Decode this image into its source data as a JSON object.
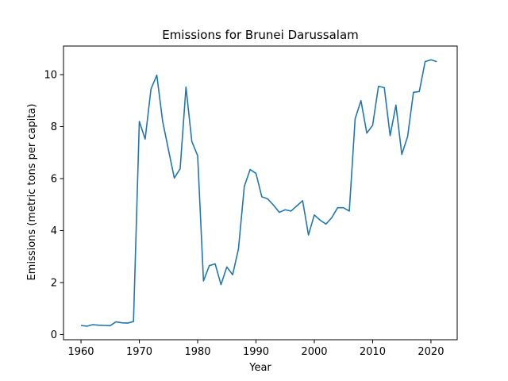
{
  "chart_data": {
    "type": "line",
    "title": "Emissions for Brunei Darussalam",
    "xlabel": "Year",
    "ylabel": "Emissions (metric tons per capita)",
    "xlim": [
      1957,
      2024.5
    ],
    "ylim": [
      -0.2,
      11.1
    ],
    "xticks": [
      1960,
      1970,
      1980,
      1990,
      2000,
      2010,
      2020
    ],
    "yticks": [
      0,
      2,
      4,
      6,
      8,
      10
    ],
    "grid": false,
    "color": "#1f77b4",
    "x": [
      1960,
      1961,
      1962,
      1963,
      1964,
      1965,
      1966,
      1967,
      1968,
      1969,
      1970,
      1971,
      1972,
      1973,
      1974,
      1975,
      1976,
      1977,
      1978,
      1979,
      1980,
      1981,
      1982,
      1983,
      1984,
      1985,
      1986,
      1987,
      1988,
      1989,
      1990,
      1991,
      1992,
      1993,
      1994,
      1995,
      1996,
      1997,
      1998,
      1999,
      2000,
      2001,
      2002,
      2003,
      2004,
      2005,
      2006,
      2007,
      2008,
      2009,
      2010,
      2011,
      2012,
      2013,
      2014,
      2015,
      2016,
      2017,
      2018,
      2019,
      2020,
      2021
    ],
    "y": [
      0.35,
      0.32,
      0.38,
      0.36,
      0.35,
      0.34,
      0.49,
      0.45,
      0.44,
      0.5,
      8.2,
      7.52,
      9.45,
      9.98,
      8.2,
      7.1,
      6.02,
      6.38,
      9.52,
      7.43,
      6.88,
      2.06,
      2.65,
      2.72,
      1.92,
      2.6,
      2.3,
      3.3,
      5.7,
      6.35,
      6.2,
      5.3,
      5.22,
      4.98,
      4.7,
      4.8,
      4.75,
      4.95,
      5.15,
      3.83,
      4.6,
      4.4,
      4.25,
      4.5,
      4.88,
      4.88,
      4.75,
      8.3,
      9.0,
      7.75,
      8.05,
      9.55,
      9.5,
      7.65,
      8.83,
      6.93,
      7.62,
      9.32,
      9.35,
      10.5,
      10.57,
      10.5
    ]
  }
}
